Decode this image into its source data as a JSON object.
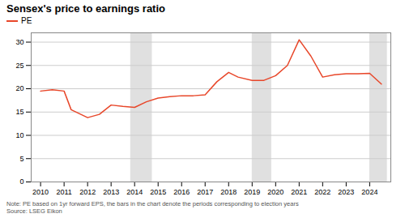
{
  "chart_data": {
    "type": "line",
    "title": "Sensex's price to earnings ratio",
    "note": "Note: PE based on 1yr forward EPS, the bars in the chart denote the periods corresponding to election years",
    "source": "Source: LSEG Eikon",
    "x": [
      2010.0,
      2010.5,
      2011.0,
      2011.3,
      2012.0,
      2012.5,
      2013.0,
      2013.5,
      2014.0,
      2014.5,
      2015.0,
      2015.5,
      2016.0,
      2016.5,
      2017.0,
      2017.5,
      2018.0,
      2018.4,
      2019.0,
      2019.5,
      2020.0,
      2020.5,
      2021.0,
      2021.5,
      2022.0,
      2022.5,
      2023.0,
      2023.5,
      2024.0,
      2024.5
    ],
    "series": [
      {
        "name": "PE",
        "color": "#E8472A",
        "values": [
          19.5,
          19.8,
          19.5,
          15.5,
          13.8,
          14.5,
          16.5,
          16.2,
          16.0,
          17.2,
          18.0,
          18.3,
          18.5,
          18.5,
          18.7,
          21.5,
          23.5,
          22.5,
          21.8,
          21.8,
          22.8,
          25.0,
          30.5,
          27.0,
          22.5,
          23.0,
          23.2,
          23.2,
          23.3,
          21.0
        ]
      }
    ],
    "shaded_regions": {
      "color": "#e0e0e0",
      "ranges": [
        [
          2013.83,
          2014.75
        ],
        [
          2019.0,
          2019.83
        ],
        [
          2024.0,
          2024.75
        ]
      ]
    },
    "xlim": [
      2009.6,
      2024.9
    ],
    "xticks": [
      2010,
      2011,
      2012,
      2013,
      2014,
      2015,
      2016,
      2017,
      2018,
      2019,
      2020,
      2021,
      2022,
      2023,
      2024
    ],
    "ylim": [
      0,
      32
    ],
    "yticks": [
      0,
      5,
      10,
      15,
      20,
      25,
      30
    ],
    "grid": true,
    "legend": "upper left"
  }
}
